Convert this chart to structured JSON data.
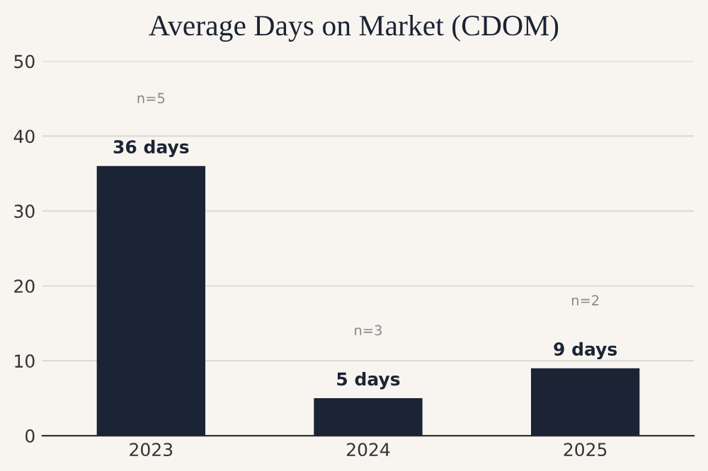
{
  "chart_data": {
    "type": "bar",
    "title": "Average Days on Market (CDOM)",
    "categories": [
      "2023",
      "2024",
      "2025"
    ],
    "values": [
      36,
      5,
      9
    ],
    "color": "#1b2434",
    "value_labels": [
      "36 days",
      "5 days",
      "9 days"
    ],
    "annotations": [
      "n=5",
      "n=3",
      "n=2"
    ],
    "ylim": [
      0,
      50
    ],
    "yticks": [
      0,
      10,
      20,
      30,
      40,
      50
    ],
    "grid": "y",
    "legend": false
  }
}
